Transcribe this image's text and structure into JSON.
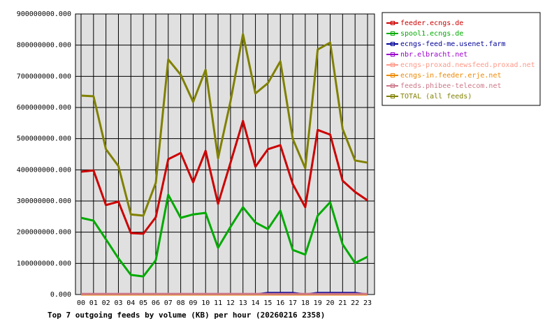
{
  "chart_data": {
    "type": "line",
    "title": "Top 7 outgoing feeds by volume (KB) per hour (20260216 2358)",
    "categories": [
      "00",
      "01",
      "02",
      "03",
      "04",
      "05",
      "06",
      "07",
      "08",
      "09",
      "10",
      "11",
      "12",
      "13",
      "14",
      "15",
      "16",
      "17",
      "18",
      "19",
      "20",
      "21",
      "22",
      "23"
    ],
    "series": [
      {
        "name": "feeder.ecngs.de",
        "color": "#cc0000",
        "values": [
          394000000,
          398000000,
          287000000,
          298000000,
          197000000,
          195000000,
          248000000,
          434000000,
          454000000,
          360000000,
          461000000,
          291000000,
          423000000,
          557000000,
          410000000,
          466000000,
          479000000,
          354000000,
          280000000,
          528000000,
          513000000,
          365000000,
          329000000,
          302000000
        ]
      },
      {
        "name": "spool1.ecngs.de",
        "color": "#00aa00",
        "values": [
          246000000,
          237000000,
          177000000,
          116000000,
          63000000,
          58000000,
          110000000,
          320000000,
          246000000,
          257000000,
          262000000,
          150000000,
          217000000,
          280000000,
          231000000,
          210000000,
          269000000,
          143000000,
          128000000,
          253000000,
          296000000,
          161000000,
          101000000,
          121000000
        ]
      },
      {
        "name": "ecngs-feed-me.usenet.farm",
        "color": "#000099",
        "values": [
          0,
          0,
          0,
          0,
          0,
          0,
          0,
          0,
          0,
          0,
          0,
          0,
          0,
          0,
          0,
          5000000,
          5000000,
          5000000,
          0,
          5000000,
          5000000,
          5000000,
          5000000,
          0
        ]
      },
      {
        "name": "nbr.elbracht.net",
        "color": "#9900cc",
        "values": [
          0,
          0,
          0,
          0,
          0,
          0,
          0,
          0,
          0,
          0,
          0,
          0,
          0,
          0,
          0,
          0,
          0,
          0,
          0,
          0,
          0,
          0,
          0,
          0
        ]
      },
      {
        "name": "ecngs-proxad.newsfeed.proxad.net",
        "color": "#ff9988",
        "values": [
          1000000,
          1000000,
          1000000,
          1000000,
          1000000,
          1000000,
          1000000,
          1000000,
          1000000,
          1000000,
          1000000,
          1000000,
          1000000,
          1000000,
          1000000,
          1000000,
          1000000,
          1000000,
          1000000,
          1000000,
          1000000,
          1000000,
          1000000,
          1000000
        ]
      },
      {
        "name": "ecngs-in.feeder.erje.net",
        "color": "#ee8800",
        "values": [
          0,
          0,
          0,
          0,
          0,
          0,
          0,
          0,
          0,
          0,
          0,
          0,
          0,
          0,
          0,
          0,
          0,
          0,
          0,
          0,
          0,
          0,
          0,
          0
        ]
      },
      {
        "name": "feeds.phibee-telecom.net",
        "color": "#cc7788",
        "values": [
          2000000,
          2000000,
          2000000,
          2000000,
          2000000,
          2000000,
          2000000,
          2000000,
          2000000,
          2000000,
          2000000,
          2000000,
          2000000,
          2000000,
          2000000,
          2000000,
          2000000,
          2000000,
          2000000,
          2000000,
          2000000,
          2000000,
          2000000,
          2000000
        ]
      },
      {
        "name": "TOTAL (all feeds)",
        "color": "#808000",
        "values": [
          638000000,
          636000000,
          466000000,
          412000000,
          257000000,
          253000000,
          358000000,
          754000000,
          705000000,
          618000000,
          721000000,
          437000000,
          620000000,
          835000000,
          645000000,
          678000000,
          748000000,
          499000000,
          405000000,
          786000000,
          808000000,
          531000000,
          430000000,
          423000000
        ]
      }
    ],
    "ylim": [
      0,
      900000000
    ],
    "yticks": [
      {
        "value": 0,
        "label": "0.000"
      },
      {
        "value": 100000000,
        "label": "100000000.000"
      },
      {
        "value": 200000000,
        "label": "200000000.000"
      },
      {
        "value": 300000000,
        "label": "300000000.000"
      },
      {
        "value": 400000000,
        "label": "400000000.000"
      },
      {
        "value": 500000000,
        "label": "500000000.000"
      },
      {
        "value": 600000000,
        "label": "600000000.000"
      },
      {
        "value": 700000000,
        "label": "700000000.000"
      },
      {
        "value": 800000000,
        "label": "800000000.000"
      },
      {
        "value": 900000000,
        "label": "900000000.000"
      }
    ],
    "grid": true,
    "legend": "right"
  }
}
